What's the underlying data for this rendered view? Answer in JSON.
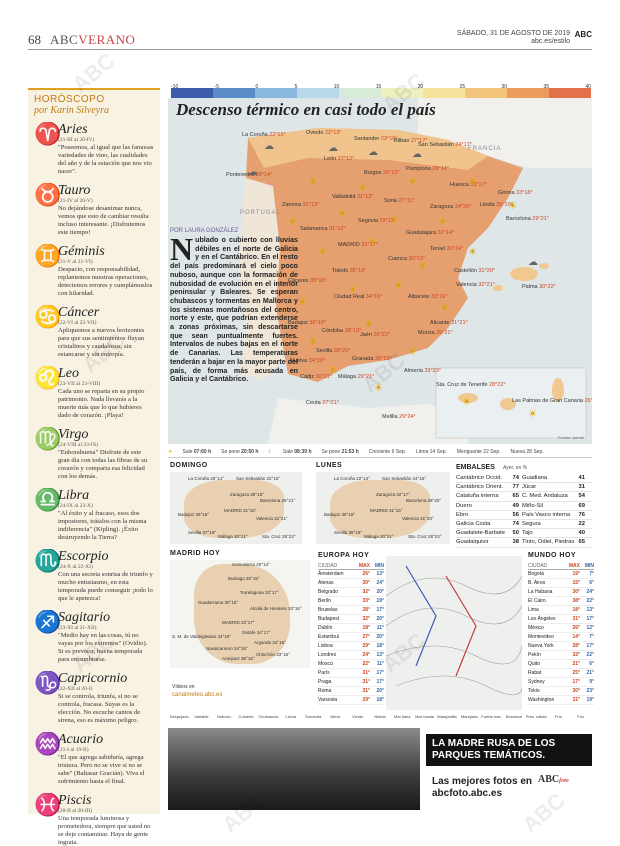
{
  "header": {
    "page_number": "68",
    "brand": "ABC",
    "section": "VERANO",
    "date": "SÁBADO, 31 DE AGOSTO DE 2019",
    "site": "abc.es/estilo",
    "logo": "ABC"
  },
  "horoscope": {
    "title": "HORÓSCOPO",
    "author": "por Karin Silveyra",
    "signs": [
      {
        "glyph": "♈",
        "name": "Aries",
        "dates": "(21-III al 20-IV)",
        "text": "\"Poseemos, al igual que las famosas variedades de vino, las cualidades del año y de la estación que nos vio nacer\"."
      },
      {
        "glyph": "♉",
        "name": "Tauro",
        "dates": "(21-IV al 20-V)",
        "text": "No dejándose desanimar nunca, vemos que esto de cambiar resulta incluso interesante. ¡Disfrutemos este tiempo!"
      },
      {
        "glyph": "♊",
        "name": "Géminis",
        "dates": "(21-V al 21-VI)",
        "text": "Despacio, con responsabilidad, replantemos nuestras operaciones, detectemos errores y cumplámoslos con hilaridad."
      },
      {
        "glyph": "♋",
        "name": "Cáncer",
        "dates": "(22-VI al 22-VII)",
        "text": "Apliquemos a nuevos horizontes para que sus sentimientos fluyan cristalinos y caudalosos, sin estancarse y sin entropía."
      },
      {
        "glyph": "♌",
        "name": "Leo",
        "dates": "(23-VII al 23-VIII)",
        "text": "Cada uno se reparta en su propio patrimonio. Nada llevarás a la muerte más que lo que hubieres dado de corazón. ¡Playa!"
      },
      {
        "glyph": "♍",
        "name": "Virgo",
        "dates": "(24-VIII al 23-IX)",
        "text": "\"Enhorabuena\" Disfrute de este gran día con todas las fibras de su corazón y comparta esa felicidad con los demás."
      },
      {
        "glyph": "♎",
        "name": "Libra",
        "dates": "(24-IX al 23-X)",
        "text": "\"Al éxito y al fracaso, esos dos impostores, trátalos con la misma indiferencia\" (Kipling). ¡Éxito destruyendo la Tierra?"
      },
      {
        "glyph": "♏",
        "name": "Escorpio",
        "dates": "(24-X al 22-XI)",
        "text": "Con una secreta sonrisa de triunfo y mucho entusiasmo, en esta temporada puede conseguir ¡todo lo que le apetezca!"
      },
      {
        "glyph": "♐",
        "name": "Sagitario",
        "dates": "(23-XI al 21-XII)",
        "text": "\"Medio hay en las cosas, tú no vayas por los extremos\" (Ovidio). Si es previsor, buena temporada para encumbrarse."
      },
      {
        "glyph": "♑",
        "name": "Capricornio",
        "dates": "(22-XII al 20-I)",
        "text": "Si se controla, triunfa, si no se controla, fracasa. Suyas es la elección. No escuche cantos de sirena, eso es máximo peligro."
      },
      {
        "glyph": "♒",
        "name": "Acuario",
        "dates": "(21-I al 19-II)",
        "text": "\"El que agrega sabiduría, agrega tristeza. Pero no se vive si no se sabe\" (Baltasar Gracián). Viva el sufrimiento hasta el final."
      },
      {
        "glyph": "♓",
        "name": "Piscis",
        "dates": "(20-II al 20-III)",
        "text": "Una temporada luminosa y prometedora, siempre que usted no se deje contaminar. Haya de gente ingrata."
      }
    ]
  },
  "weather": {
    "title": "Descenso térmico en casi todo el país",
    "scale_labels": [
      "-10",
      "-5",
      "0",
      "5",
      "10",
      "15",
      "20",
      "25",
      "30",
      "35",
      "40"
    ],
    "scale_colors": [
      "#3b5ca8",
      "#5a8cc8",
      "#8ab8dd",
      "#b8d8ea",
      "#d8ead8",
      "#eef0c0",
      "#f6e29a",
      "#f3c47c",
      "#ec9b5c",
      "#e27048"
    ],
    "byline": "POR LAURA GONZÁLEZ",
    "article": "ublado o cubierto con lluvias débiles en el norte de Galicia y en el Cantábrico. En el resto del país predominará el cielo poco nuboso, aunque con la formación de nubosidad de evolución en el interior peninsular y Baleares. Se esperan chubascos y tormentas en Mallorca y los sistemas montañosos del centro, norte y este, que podrían extenderse a zonas próximas, sin descartarse que sean puntualmente fuertes. Intervalos de nubes bajas en el norte de Canarias. Las temperaturas tenderán a bajar en la mayor parte del país, de forma más acusada en Galicia y el Cantábrico.",
    "article_cap": "N",
    "countries": [
      "FRANCIA",
      "PORTUGAL"
    ],
    "cities": [
      {
        "name": "La Coruña",
        "temp": "22°15°"
      },
      {
        "name": "Oviedo",
        "temp": "22°13°"
      },
      {
        "name": "Santander",
        "temp": "23°16°"
      },
      {
        "name": "Bilbao",
        "temp": "27°17°"
      },
      {
        "name": "San Sebastián",
        "temp": "24°17°"
      },
      {
        "name": "Pontevedra",
        "temp": "28°14°"
      },
      {
        "name": "León",
        "temp": "27°12°"
      },
      {
        "name": "Burgos",
        "temp": "26°10°"
      },
      {
        "name": "Pamplona",
        "temp": "29°14°"
      },
      {
        "name": "Huesca",
        "temp": "33°17°"
      },
      {
        "name": "Girona",
        "temp": "33°18°"
      },
      {
        "name": "Lleida",
        "temp": "35°19°"
      },
      {
        "name": "Barcelona",
        "temp": "29°21°"
      },
      {
        "name": "Zaragoza",
        "temp": "34°20°"
      },
      {
        "name": "Zamora",
        "temp": "31°13°"
      },
      {
        "name": "Valladolid",
        "temp": "31°12°"
      },
      {
        "name": "Soria",
        "temp": "27°11°"
      },
      {
        "name": "Salamanca",
        "temp": "31°12°"
      },
      {
        "name": "Segovia",
        "temp": "29°13°"
      },
      {
        "name": "Guadalajara",
        "temp": "32°14°"
      },
      {
        "name": "Teruel",
        "temp": "30°14°"
      },
      {
        "name": "Castellón",
        "temp": "31°20°"
      },
      {
        "name": "Palma",
        "temp": "30°22°"
      },
      {
        "name": "MADRID",
        "temp": "33°17°"
      },
      {
        "name": "Cuenca",
        "temp": "30°13°"
      },
      {
        "name": "Valencia",
        "temp": "32°21°"
      },
      {
        "name": "Cáceres",
        "temp": "35°18°"
      },
      {
        "name": "Toledo",
        "temp": "35°19°"
      },
      {
        "name": "Ciudad Real",
        "temp": "34°16°"
      },
      {
        "name": "Albacete",
        "temp": "33°16°"
      },
      {
        "name": "Alicante",
        "temp": "31°21°"
      },
      {
        "name": "Badajoz",
        "temp": "36°19°"
      },
      {
        "name": "Córdoba",
        "temp": "38°19°"
      },
      {
        "name": "Jaén",
        "temp": "36°22°"
      },
      {
        "name": "Murcia",
        "temp": "35°21°"
      },
      {
        "name": "Sevilla",
        "temp": "38°20°"
      },
      {
        "name": "Huelva",
        "temp": "34°20°"
      },
      {
        "name": "Granada",
        "temp": "36°19°"
      },
      {
        "name": "Almería",
        "temp": "33°23°"
      },
      {
        "name": "Cádiz",
        "temp": "30°21°"
      },
      {
        "name": "Málaga",
        "temp": "29°21°"
      },
      {
        "name": "Ceuta",
        "temp": "27°21°"
      },
      {
        "name": "Melilla",
        "temp": "29°24°"
      },
      {
        "name": "Sta. Cruz de Tenerife",
        "temp": "28°22°"
      },
      {
        "name": "Las Palmas de Gran Canaria",
        "temp": "26°21°"
      }
    ],
    "credit": "Fuente: Aemet",
    "sunbar": {
      "sun_rise_label": "Sale",
      "sun_rise": "07:60 h",
      "sun_set_label": "Se pone",
      "sun_set": "20:50 h",
      "moon_rise_label": "Sale",
      "moon_rise": "08:39 h",
      "moon_set_label": "Se pone",
      "moon_set": "21:53 h",
      "phases": [
        "Creciente 6 Sep.",
        "Llena 14 Sep.",
        "Menguante 22 Sep.",
        "Nueva 28 Sep."
      ]
    }
  },
  "forecasts": {
    "domingo": {
      "title": "DOMINGO",
      "cities": [
        "La Coruña 20°14°",
        "San Sebastián 22°16°",
        "Zaragoza 30°18°",
        "Barcelona 29°21°",
        "MADRID 31°16°",
        "Badajoz 35°18°",
        "Valencia 31°21°",
        "Sevilla 37°19°",
        "Málaga 30°21°",
        "Sta. Cruz 28°22°"
      ]
    },
    "lunes": {
      "title": "LUNES",
      "cities": [
        "La Coruña 22°14°",
        "San Sebastián 24°16°",
        "Zaragoza 32°17°",
        "Barcelona 29°20°",
        "MADRID 31°16°",
        "Badajoz 36°18°",
        "Valencia 31°20°",
        "Sevilla 38°19°",
        "Málaga 30°21°",
        "Sta. Cruz 28°22°"
      ]
    }
  },
  "reservoirs": {
    "title": "EMBALSES",
    "date": "Ayer, en %",
    "left": [
      {
        "name": "Cantábrico Occid.",
        "value": "74"
      },
      {
        "name": "Cantábrico Orient.",
        "value": "77"
      },
      {
        "name": "Cataluña interna",
        "value": "65"
      },
      {
        "name": "Duero",
        "value": "49"
      },
      {
        "name": "Ebro",
        "value": "56"
      },
      {
        "name": "Galicia Costa",
        "value": "74"
      },
      {
        "name": "Guadalete-Barbate",
        "value": "50"
      },
      {
        "name": "Guadalquivir",
        "value": "38"
      }
    ],
    "right": [
      {
        "name": "Guadiana",
        "value": "41"
      },
      {
        "name": "Júcar",
        "value": "31"
      },
      {
        "name": "C. Med. Andaluza",
        "value": "54"
      },
      {
        "name": "Miño-Sil",
        "value": "69"
      },
      {
        "name": "País Vasco interna",
        "value": "76"
      },
      {
        "name": "Segura",
        "value": "22"
      },
      {
        "name": "Tajo",
        "value": "40"
      },
      {
        "name": "Tinto, Odiel, Piedras",
        "value": "65"
      }
    ]
  },
  "madrid": {
    "title": "MADRID HOY",
    "towns": [
      "Somosierra 20°14°",
      "Buitrago 30°15°",
      "Torrelaguna 32°17°",
      "Guadarrama 30°15°",
      "Alcalá de Henares 33°16°",
      "MADRID 33°17°",
      "Getafe 34°17°",
      "S. M. de Valdeiglesias 34°18°",
      "Navalcarnero 34°18°",
      "Arganda 34°16°",
      "Aranjuez 36°16°",
      "Chinchón 33°16°"
    ],
    "footer_label": "Vídeos en",
    "footer_site": "canalmeteo.abc.es"
  },
  "europa": {
    "title": "EUROPA HOY",
    "head": [
      "CIUDAD",
      "MAX",
      "MIN"
    ],
    "rows": [
      [
        "Ámsterdam",
        "26°",
        "13°"
      ],
      [
        "Atenas",
        "30°",
        "24°"
      ],
      [
        "Belgrado",
        "32°",
        "20°"
      ],
      [
        "Berlín",
        "33°",
        "19°"
      ],
      [
        "Bruselas",
        "28°",
        "17°"
      ],
      [
        "Budapest",
        "32°",
        "20°"
      ],
      [
        "Dublín",
        "18°",
        "11°"
      ],
      [
        "Estambul",
        "27°",
        "20°"
      ],
      [
        "Lisboa",
        "29°",
        "18°"
      ],
      [
        "Londres",
        "24°",
        "13°"
      ],
      [
        "Moscú",
        "22°",
        "11°"
      ],
      [
        "París",
        "31°",
        "17°"
      ],
      [
        "Praga",
        "31°",
        "17°"
      ],
      [
        "Roma",
        "31°",
        "20°"
      ],
      [
        "Varsovia",
        "29°",
        "18°"
      ]
    ]
  },
  "mundo": {
    "title": "MUNDO HOY",
    "head": [
      "CIUDAD",
      "MAX",
      "MIN"
    ],
    "rows": [
      [
        "Bogotá",
        "19°",
        "7°"
      ],
      [
        "B. Aires",
        "15°",
        "6°"
      ],
      [
        "La Habana",
        "30°",
        "24°"
      ],
      [
        "El Cairo",
        "38°",
        "22°"
      ],
      [
        "Lima",
        "18°",
        "13°"
      ],
      [
        "Los Ángeles",
        "31°",
        "17°"
      ],
      [
        "México",
        "26°",
        "12°"
      ],
      [
        "Montevideo",
        "14°",
        "7°"
      ],
      [
        "Nueva York",
        "28°",
        "17°"
      ],
      [
        "Pekín",
        "32°",
        "22°"
      ],
      [
        "Quito",
        "21°",
        "6°"
      ],
      [
        "Rabat",
        "25°",
        "21°"
      ],
      [
        "Sydney",
        "17°",
        "9°"
      ],
      [
        "Tokio",
        "30°",
        "23°"
      ],
      [
        "Washington",
        "31°",
        "19°"
      ]
    ]
  },
  "legend": [
    "Despejado",
    "Variable",
    "Nuboso",
    "Cubierto",
    "Chubascos",
    "Lluvia",
    "Tormenta",
    "Nieve",
    "Viento",
    "Niebla",
    "Mar llana",
    "Mar rizada",
    "Marejadilla",
    "Marejada",
    "Fuerte mar.",
    "Borrasca",
    "Pres. calida",
    "Frío",
    "Frío"
  ],
  "ad": {
    "headline": "LA MADRE RUSA DE LOS PARQUES TEMÁTICOS.",
    "sub": "Las mejores fotos en abcfoto.abc.es",
    "logo": "ABC",
    "logo_suffix": "foto"
  },
  "watermark": "ABC"
}
